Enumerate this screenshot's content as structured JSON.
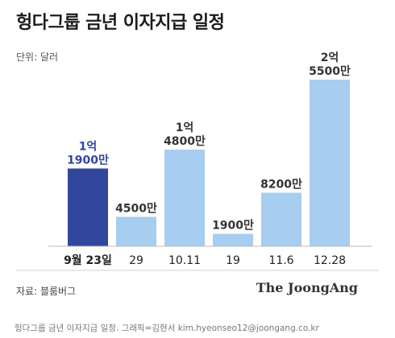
{
  "title": "헝다그룹 금년 이자지급 일정",
  "unit_label": "단위: 달러",
  "source_label": "자료: 블룸버그",
  "brand": "The JoongAng",
  "credit": "헝다그룹 금년 이자지급 일정. 그래픽=김현서 kim.hyeonseo12@joongang.co.kr",
  "colors": {
    "highlight": "#32469b",
    "bar": "#a7cdf0",
    "baseline": "#bbbbbb"
  },
  "chart_data": {
    "type": "bar",
    "categories": [
      "9월 23일",
      "29",
      "10.11",
      "19",
      "11.6",
      "12.28"
    ],
    "values": [
      119000000,
      45000000,
      148000000,
      19000000,
      82000000,
      255000000
    ],
    "value_labels": [
      [
        "1억",
        "1900만"
      ],
      [
        "4500만"
      ],
      [
        "1억",
        "4800만"
      ],
      [
        "1900만"
      ],
      [
        "8200만"
      ],
      [
        "2억",
        "5500만"
      ]
    ],
    "highlight_index": 0,
    "ylim": [
      0,
      255000000
    ]
  }
}
